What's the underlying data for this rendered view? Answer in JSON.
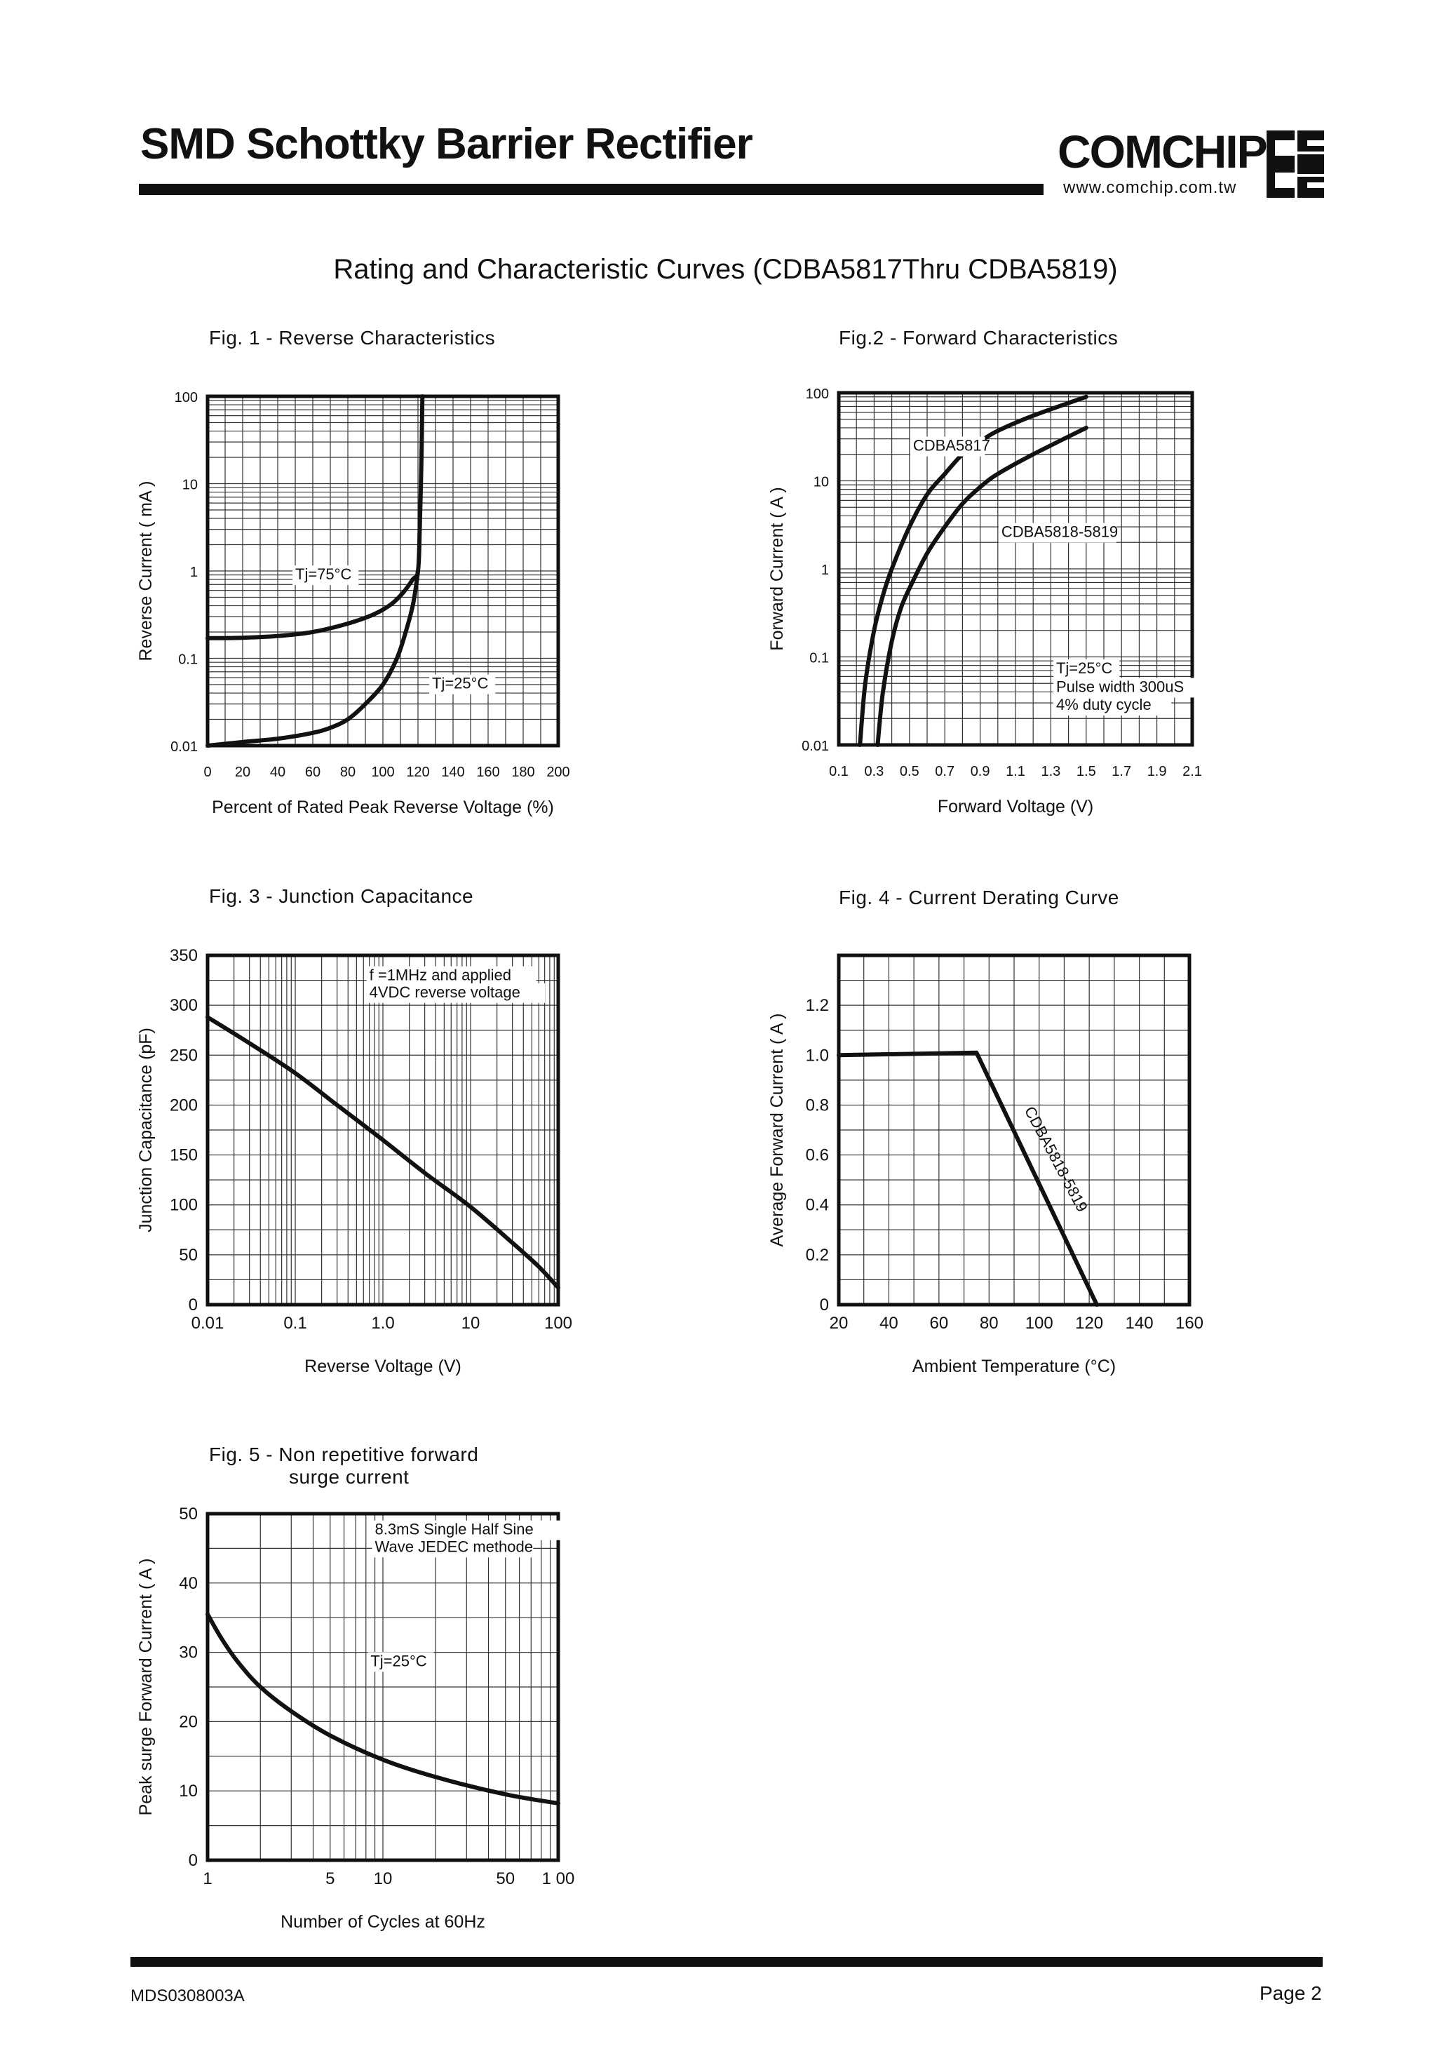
{
  "header": {
    "title": "SMD Schottky Barrier Rectifier",
    "brand": "COMCHIP",
    "url": "www.comchip.com.tw"
  },
  "page_title": "Rating and Characteristic Curves (CDBA5817Thru CDBA5819)",
  "footer": {
    "doc_id": "MDS0308003A",
    "page": "Page 2"
  },
  "colors": {
    "ink": "#111111",
    "grid": "#333333",
    "paper": "#ffffff"
  },
  "chart_data": [
    {
      "id": "fig1",
      "type": "line",
      "title": "Fig. 1 -  Reverse Characteristics",
      "xlabel": "Percent of Rated Peak Reverse Voltage (%)",
      "ylabel": "Reverse Current ( mA )",
      "xscale": "linear",
      "yscale": "log",
      "xlim": [
        0,
        200
      ],
      "ylim": [
        0.01,
        100
      ],
      "xticks": [
        0,
        20,
        40,
        60,
        80,
        100,
        120,
        140,
        160,
        180,
        200
      ],
      "xtick_labels": [
        "0",
        "20",
        "40",
        "60",
        "80",
        "100",
        "120",
        "140",
        "160",
        "180",
        "200"
      ],
      "yticks": [
        0.01,
        0.1,
        1,
        10,
        100
      ],
      "ytick_labels": [
        "0.01",
        "0.1",
        "1",
        "10",
        "100"
      ],
      "grid": true,
      "series": [
        {
          "name": "Tj=75°C",
          "x": [
            0,
            20,
            40,
            60,
            80,
            95,
            105,
            112,
            117,
            120,
            121,
            122,
            122.5
          ],
          "y": [
            0.17,
            0.172,
            0.18,
            0.2,
            0.25,
            0.32,
            0.42,
            0.58,
            0.8,
            1.0,
            3,
            20,
            100
          ]
        },
        {
          "name": "Tj=25°C",
          "x": [
            0,
            20,
            40,
            60,
            70,
            80,
            90,
            100,
            108,
            113,
            117,
            119,
            120
          ],
          "y": [
            0.01,
            0.011,
            0.012,
            0.014,
            0.016,
            0.02,
            0.03,
            0.05,
            0.1,
            0.2,
            0.4,
            0.7,
            1.0
          ]
        }
      ],
      "annotations": [
        {
          "text": "Tj=75°C",
          "x": 50,
          "y": 0.8
        },
        {
          "text": "Tj=25°C",
          "x": 128,
          "y": 0.045
        }
      ]
    },
    {
      "id": "fig2",
      "type": "line",
      "title": "Fig.2 -  Forward Characteristics",
      "xlabel": "Forward Voltage (V)",
      "ylabel": "Forward Current ( A )",
      "xscale": "linear",
      "yscale": "log",
      "xlim": [
        0.1,
        2.1
      ],
      "ylim": [
        0.01,
        100
      ],
      "xticks": [
        0.1,
        0.3,
        0.5,
        0.7,
        0.9,
        1.1,
        1.3,
        1.5,
        1.7,
        1.9,
        2.1
      ],
      "xtick_labels": [
        "0.1",
        "0.3",
        "0.5",
        "0.7",
        "0.9",
        "1.1",
        "1.3",
        "1.5",
        "1.7",
        "1.9",
        "2.1"
      ],
      "yticks": [
        0.01,
        0.1,
        1,
        10,
        100
      ],
      "ytick_labels": [
        "0.01",
        "0.1",
        "1",
        "10",
        "100"
      ],
      "grid": true,
      "series": [
        {
          "name": "CDBA5817",
          "x": [
            0.22,
            0.25,
            0.3,
            0.35,
            0.4,
            0.5,
            0.6,
            0.7,
            0.8,
            0.9,
            1.0,
            1.2,
            1.5
          ],
          "y": [
            0.01,
            0.05,
            0.2,
            0.5,
            1.0,
            3,
            7,
            12,
            20,
            28,
            37,
            55,
            90
          ]
        },
        {
          "name": "CDBA5818-5819",
          "x": [
            0.32,
            0.35,
            0.4,
            0.45,
            0.5,
            0.6,
            0.7,
            0.8,
            0.9,
            1.0,
            1.2,
            1.5
          ],
          "y": [
            0.01,
            0.04,
            0.15,
            0.35,
            0.6,
            1.5,
            3,
            5.5,
            8.5,
            12,
            20,
            40
          ]
        }
      ],
      "annotations": [
        {
          "text": "CDBA5817",
          "x": 0.52,
          "y": 22
        },
        {
          "text": "CDBA5818-5819",
          "x": 1.02,
          "y": 2.3
        },
        {
          "text": "Tj=25°C",
          "x": 1.33,
          "y": 0.065
        },
        {
          "text": "Pulse width 300uS",
          "x": 1.33,
          "y": 0.04
        },
        {
          "text": "4% duty cycle",
          "x": 1.33,
          "y": 0.025
        }
      ]
    },
    {
      "id": "fig3",
      "type": "line",
      "title": "Fig. 3 -  Junction Capacitance",
      "xlabel": "Reverse Voltage (V)",
      "ylabel": "Junction Capacitance  (pF)",
      "xscale": "log",
      "yscale": "linear",
      "xlim": [
        0.01,
        100
      ],
      "ylim": [
        0,
        350
      ],
      "xticks": [
        0.01,
        0.1,
        1,
        10,
        100
      ],
      "xtick_labels": [
        "0.01",
        "0.1",
        "1.0",
        "10",
        "100"
      ],
      "yticks": [
        0,
        50,
        100,
        150,
        200,
        250,
        300,
        350
      ],
      "ytick_labels": [
        "0",
        "50",
        "100",
        "150",
        "200",
        "250",
        "300",
        "350"
      ],
      "grid": true,
      "series": [
        {
          "name": "",
          "x": [
            0.01,
            0.03,
            0.1,
            0.3,
            1,
            3,
            10,
            30,
            60,
            100
          ],
          "y": [
            288,
            262,
            232,
            200,
            165,
            132,
            98,
            62,
            38,
            17
          ]
        }
      ],
      "annotations": [
        {
          "text": "f =1MHz and applied",
          "x": 0.7,
          "y": 325
        },
        {
          "text": "4VDC reverse voltage",
          "x": 0.7,
          "y": 308
        }
      ]
    },
    {
      "id": "fig4",
      "type": "line",
      "title": "Fig. 4 - Current Derating Curve",
      "xlabel": "Ambient Temperature (°C)",
      "ylabel": "Average Forward Current ( A )",
      "xscale": "linear",
      "yscale": "linear",
      "xlim": [
        20,
        160
      ],
      "ylim": [
        0,
        1.4
      ],
      "xticks": [
        20,
        40,
        60,
        80,
        100,
        120,
        140,
        160
      ],
      "xtick_labels": [
        "20",
        "40",
        "60",
        "80",
        "100",
        "120",
        "140",
        "160"
      ],
      "yticks": [
        0,
        0.2,
        0.4,
        0.6,
        0.8,
        1.0,
        1.2
      ],
      "ytick_labels": [
        "0",
        "0.2",
        "0.4",
        "0.6",
        "0.8",
        "1.0",
        "1.2"
      ],
      "grid": true,
      "series": [
        {
          "name": "CDBA5818-5819",
          "x": [
            20,
            75,
            123
          ],
          "y": [
            1.0,
            1.01,
            0
          ]
        }
      ],
      "annotations": [
        {
          "text": "CDBA5818-5819",
          "x": 94,
          "y": 0.78,
          "rotate": 62
        }
      ]
    },
    {
      "id": "fig5",
      "type": "line",
      "title": "Fig. 5 -  Non repetitive forward",
      "title_line2": "surge current",
      "xlabel": "Number of Cycles at 60Hz",
      "ylabel": "Peak surge Forward Current ( A )",
      "xscale": "log",
      "yscale": "linear",
      "xlim": [
        1,
        100
      ],
      "ylim": [
        0,
        50
      ],
      "xticks": [
        1,
        5,
        10,
        50,
        100
      ],
      "xtick_labels": [
        "1",
        "5",
        "10",
        "50",
        "1 00"
      ],
      "yticks": [
        0,
        10,
        20,
        30,
        40,
        50
      ],
      "ytick_labels": [
        "0",
        "10",
        "20",
        "30",
        "40",
        "50"
      ],
      "grid": true,
      "series": [
        {
          "name": "Tj=25°C",
          "x": [
            1,
            1.2,
            1.5,
            2,
            3,
            5,
            10,
            20,
            50,
            100
          ],
          "y": [
            35.5,
            32,
            28.5,
            25,
            21.5,
            18,
            14.5,
            12,
            9.5,
            8.2
          ]
        }
      ],
      "annotations": [
        {
          "text": "8.3mS Single Half Sine",
          "x": 9,
          "y": 47
        },
        {
          "text": "Wave JEDEC methode",
          "x": 9,
          "y": 44.5
        },
        {
          "text": "Tj=25°C",
          "x": 8.5,
          "y": 28
        }
      ]
    }
  ]
}
